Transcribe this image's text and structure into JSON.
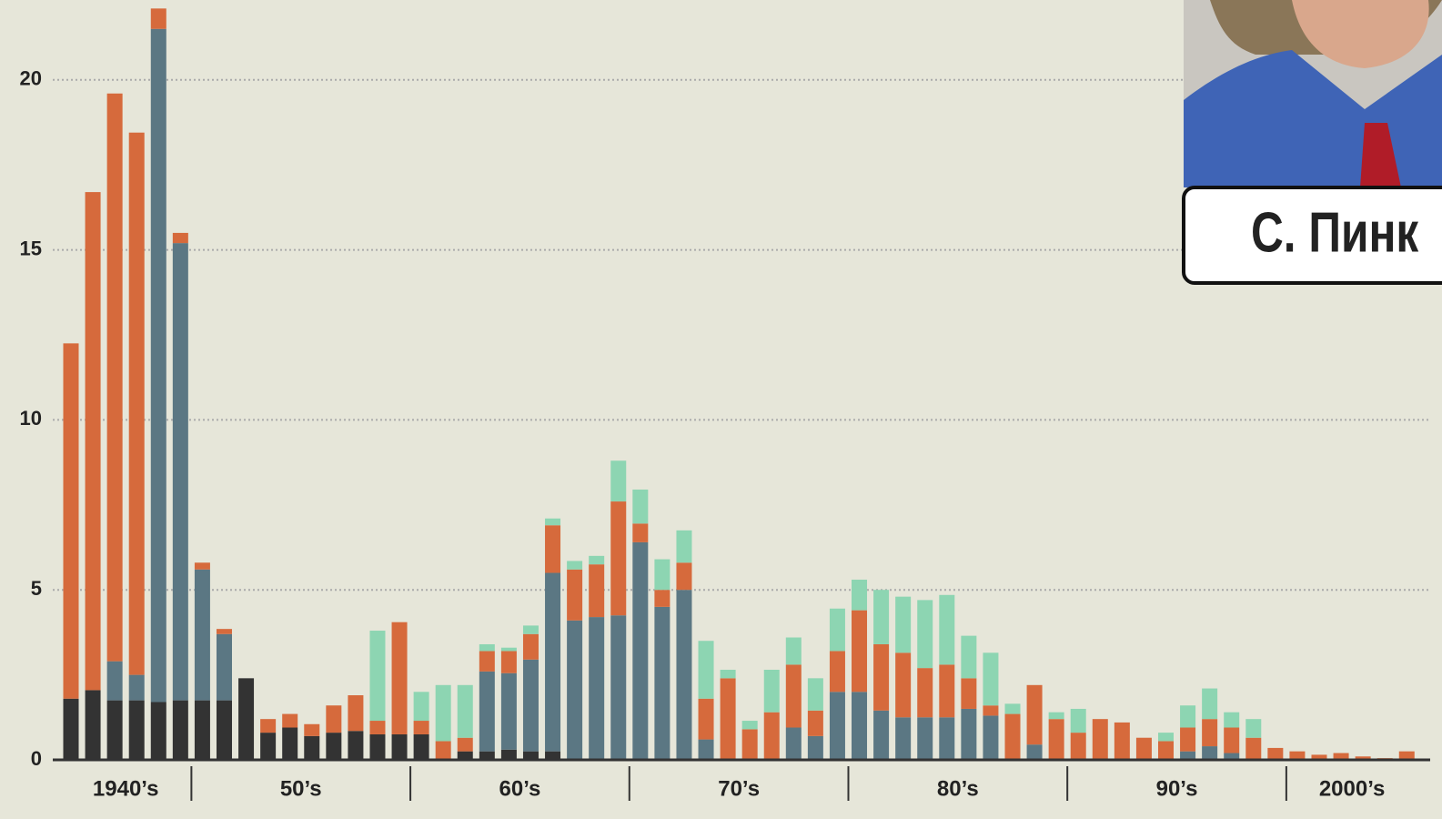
{
  "chart_data": {
    "type": "bar",
    "stacked": true,
    "categories": [
      "1940’s",
      null,
      null,
      null,
      null,
      null,
      "50’s",
      null,
      null,
      null,
      null,
      null,
      null,
      null,
      null,
      null,
      "60’s",
      null,
      null,
      null,
      null,
      null,
      null,
      null,
      null,
      null,
      "70’s",
      null,
      null,
      null,
      null,
      null,
      null,
      null,
      null,
      null,
      "80’s",
      null,
      null,
      null,
      null,
      null,
      null,
      null,
      null,
      null,
      "90’s",
      null,
      null,
      null,
      null,
      null,
      null,
      null,
      null,
      null,
      "2000’s",
      null,
      null,
      null,
      null,
      null
    ],
    "series": [
      {
        "color": "#333333",
        "values": [
          1.8,
          2.05,
          1.75,
          1.75,
          1.7,
          1.75,
          1.75,
          1.75,
          2.4,
          0.8,
          0.95,
          0.7,
          0.8,
          0.85,
          0.75,
          0.75,
          0.75,
          0,
          0.25,
          0.25,
          0.3,
          0.25,
          0.25,
          0,
          0,
          0,
          0,
          0,
          0,
          0,
          0,
          0,
          0,
          0,
          0,
          0,
          0,
          0,
          0,
          0,
          0,
          0,
          0,
          0,
          0,
          0,
          0,
          0,
          0,
          0,
          0,
          0,
          0,
          0,
          0,
          0,
          0,
          0,
          0,
          0,
          0,
          0
        ]
      },
      {
        "color": "#5b7783",
        "values": [
          0,
          0,
          1.15,
          0.75,
          19.8,
          13.45,
          3.85,
          1.95,
          0,
          0,
          0,
          0,
          0,
          0,
          0,
          0,
          0,
          0,
          0,
          2.35,
          2.25,
          2.7,
          5.25,
          4.1,
          4.2,
          4.25,
          6.4,
          4.5,
          5.0,
          0.6,
          0,
          0,
          0,
          0.95,
          0.7,
          2.0,
          2.0,
          1.45,
          1.25,
          1.25,
          1.25,
          1.5,
          1.3,
          0,
          0.45,
          0,
          0,
          0,
          0,
          0,
          0,
          0.25,
          0.4,
          0.2,
          0,
          0,
          0,
          0,
          0,
          0,
          0,
          0
        ]
      },
      {
        "color": "#d66a3c",
        "values": [
          10.45,
          14.65,
          16.7,
          15.95,
          0.6,
          0.3,
          0.2,
          0.15,
          0,
          0.4,
          0.4,
          0.35,
          0.8,
          1.05,
          0.4,
          3.3,
          0.4,
          0.55,
          0.4,
          0.6,
          0.65,
          0.75,
          1.4,
          1.5,
          1.55,
          3.35,
          0.55,
          0.5,
          0.8,
          1.2,
          2.4,
          0.9,
          1.4,
          1.85,
          0.75,
          1.2,
          2.4,
          1.95,
          1.9,
          1.45,
          1.55,
          0.9,
          0.3,
          1.35,
          1.75,
          1.2,
          0.8,
          1.2,
          1.1,
          0.65,
          0.55,
          0.7,
          0.8,
          0.75,
          0.65,
          0.35,
          0.25,
          0.15,
          0.2,
          0.1,
          0.05,
          0.25
        ]
      },
      {
        "color": "#8dd5b2",
        "values": [
          0,
          0,
          0,
          0,
          0,
          0,
          0,
          0,
          0,
          0,
          0,
          0,
          0,
          0,
          2.65,
          0,
          0.85,
          1.65,
          1.55,
          0.2,
          0.1,
          0.25,
          0.2,
          0.25,
          0.25,
          1.2,
          1.0,
          0.9,
          0.95,
          1.7,
          0.25,
          0.25,
          1.25,
          0.8,
          0.95,
          1.25,
          0.9,
          1.6,
          1.65,
          2.0,
          2.05,
          1.25,
          1.55,
          0.3,
          0,
          0.2,
          0.7,
          0,
          0,
          0,
          0.25,
          0.65,
          0.9,
          0.45,
          0.55,
          0,
          0,
          0,
          0,
          0,
          0,
          0
        ]
      }
    ],
    "ylim": [
      0,
      22.35
    ],
    "yticks": [
      0,
      5,
      10,
      15,
      20
    ],
    "grid": true,
    "overlay_caption": "С. Пинк"
  }
}
